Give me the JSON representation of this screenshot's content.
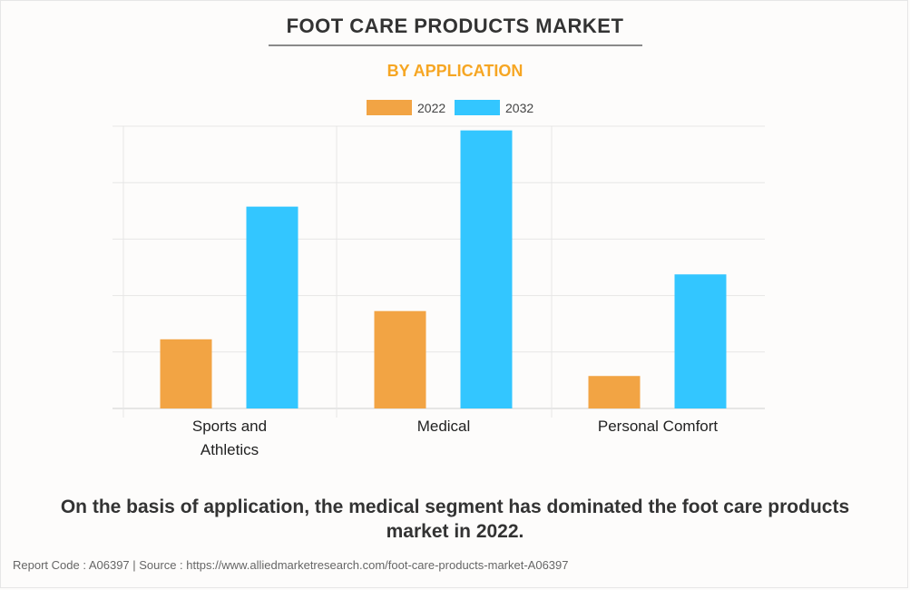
{
  "header": {
    "title": "FOOT CARE PRODUCTS MARKET",
    "subtitle": "BY APPLICATION"
  },
  "chart_data": {
    "type": "bar",
    "categories": [
      [
        "Sports and",
        "Athletics"
      ],
      [
        "Medical"
      ],
      [
        "Personal Comfort"
      ]
    ],
    "series": [
      {
        "name": "2022",
        "color": "#f2a444",
        "values": [
          24.5,
          34.5,
          11.5
        ]
      },
      {
        "name": "2032",
        "color": "#33c6ff",
        "values": [
          71.5,
          98.5,
          47.5
        ]
      }
    ],
    "ylim": [
      0,
      100
    ],
    "y_tick_count": 6,
    "grid": true,
    "legend_position": "top-center"
  },
  "footer": {
    "caption": "On the basis of application, the medical segment has dominated the foot care products market in 2022.",
    "source": "Report Code : A06397  |  Source : https://www.alliedmarketresearch.com/foot-care-products-market-A06397"
  }
}
